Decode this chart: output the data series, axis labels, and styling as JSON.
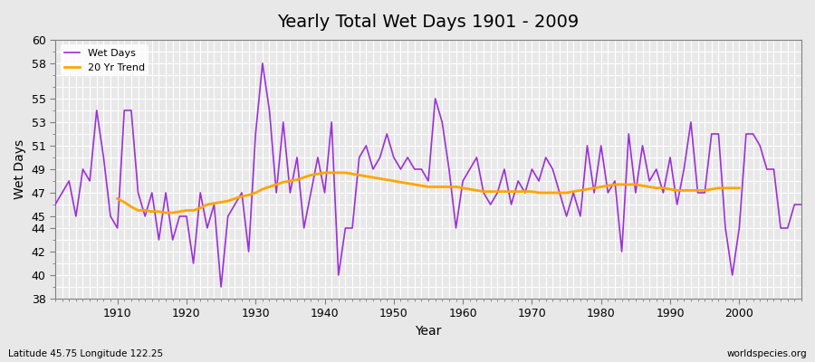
{
  "title": "Yearly Total Wet Days 1901 - 2009",
  "xlabel": "Year",
  "ylabel": "Wet Days",
  "footnote_left": "Latitude 45.75 Longitude 122.25",
  "footnote_right": "worldspecies.org",
  "legend_wet": "Wet Days",
  "legend_trend": "20 Yr Trend",
  "wet_color": "#9b30d9",
  "trend_color": "#FFA500",
  "bg_color": "#e8e8e8",
  "plot_bg_color": "#e8e8e8",
  "ylim": [
    38,
    60
  ],
  "yticks": [
    38,
    40,
    42,
    44,
    45,
    47,
    49,
    51,
    53,
    55,
    58,
    60
  ],
  "years": [
    1901,
    1902,
    1903,
    1904,
    1905,
    1906,
    1907,
    1908,
    1909,
    1910,
    1911,
    1912,
    1913,
    1914,
    1915,
    1916,
    1917,
    1918,
    1919,
    1920,
    1921,
    1922,
    1923,
    1924,
    1925,
    1926,
    1927,
    1928,
    1929,
    1930,
    1931,
    1932,
    1933,
    1934,
    1935,
    1936,
    1937,
    1938,
    1939,
    1940,
    1941,
    1942,
    1943,
    1944,
    1945,
    1946,
    1947,
    1948,
    1949,
    1950,
    1951,
    1952,
    1953,
    1954,
    1955,
    1956,
    1957,
    1958,
    1959,
    1960,
    1961,
    1962,
    1963,
    1964,
    1965,
    1966,
    1967,
    1968,
    1969,
    1970,
    1971,
    1972,
    1973,
    1974,
    1975,
    1976,
    1977,
    1978,
    1979,
    1980,
    1981,
    1982,
    1983,
    1984,
    1985,
    1986,
    1987,
    1988,
    1989,
    1990,
    1991,
    1992,
    1993,
    1994,
    1995,
    1996,
    1997,
    1998,
    1999,
    2000,
    2001,
    2002,
    2003,
    2004,
    2005,
    2006,
    2007,
    2008,
    2009
  ],
  "wet_days": [
    46,
    47,
    48,
    45,
    49,
    48,
    54,
    50,
    45,
    44,
    54,
    54,
    47,
    45,
    47,
    43,
    47,
    43,
    45,
    45,
    41,
    47,
    44,
    46,
    39,
    45,
    46,
    47,
    42,
    52,
    58,
    54,
    47,
    53,
    47,
    50,
    44,
    47,
    50,
    47,
    53,
    40,
    44,
    44,
    50,
    51,
    49,
    50,
    52,
    50,
    49,
    50,
    49,
    49,
    48,
    55,
    53,
    49,
    44,
    48,
    49,
    50,
    47,
    46,
    47,
    49,
    46,
    48,
    47,
    49,
    48,
    50,
    49,
    47,
    45,
    47,
    45,
    51,
    47,
    51,
    47,
    48,
    42,
    52,
    47,
    51,
    48,
    49,
    47,
    50,
    46,
    49,
    53,
    47,
    47,
    52,
    52,
    44,
    40,
    44,
    52,
    52,
    51,
    49,
    49,
    44,
    44,
    46,
    46
  ],
  "trend_years": [
    1910,
    1911,
    1912,
    1913,
    1914,
    1915,
    1916,
    1917,
    1918,
    1919,
    1920,
    1921,
    1922,
    1923,
    1924,
    1925,
    1926,
    1927,
    1928,
    1929,
    1930,
    1931,
    1932,
    1933,
    1934,
    1935,
    1936,
    1937,
    1938,
    1939,
    1940,
    1941,
    1942,
    1943,
    1944,
    1945,
    1946,
    1947,
    1948,
    1949,
    1950,
    1951,
    1952,
    1953,
    1954,
    1955,
    1956,
    1957,
    1958,
    1959,
    1960,
    1961,
    1962,
    1963,
    1964,
    1965,
    1966,
    1967,
    1968,
    1969,
    1970,
    1971,
    1972,
    1973,
    1974,
    1975,
    1976,
    1977,
    1978,
    1979,
    1980,
    1981,
    1982,
    1983,
    1984,
    1985,
    1986,
    1987,
    1988,
    1989,
    1990,
    1991,
    1992,
    1993,
    1994,
    1995,
    1996,
    1997,
    1998,
    1999,
    2000
  ],
  "trend_values": [
    46.5,
    46.2,
    45.8,
    45.5,
    45.5,
    45.4,
    45.4,
    45.3,
    45.3,
    45.4,
    45.5,
    45.5,
    45.7,
    46.0,
    46.1,
    46.2,
    46.3,
    46.5,
    46.7,
    46.8,
    47.0,
    47.3,
    47.5,
    47.7,
    47.9,
    48.0,
    48.1,
    48.3,
    48.5,
    48.6,
    48.7,
    48.7,
    48.7,
    48.7,
    48.6,
    48.5,
    48.4,
    48.3,
    48.2,
    48.1,
    48.0,
    47.9,
    47.8,
    47.7,
    47.6,
    47.5,
    47.5,
    47.5,
    47.5,
    47.5,
    47.4,
    47.3,
    47.2,
    47.1,
    47.1,
    47.1,
    47.1,
    47.1,
    47.1,
    47.1,
    47.1,
    47.0,
    47.0,
    47.0,
    47.0,
    47.0,
    47.1,
    47.2,
    47.3,
    47.4,
    47.5,
    47.6,
    47.7,
    47.7,
    47.7,
    47.7,
    47.6,
    47.5,
    47.4,
    47.4,
    47.3,
    47.2,
    47.2,
    47.2,
    47.2,
    47.2,
    47.3,
    47.4,
    47.4,
    47.4,
    47.4
  ]
}
